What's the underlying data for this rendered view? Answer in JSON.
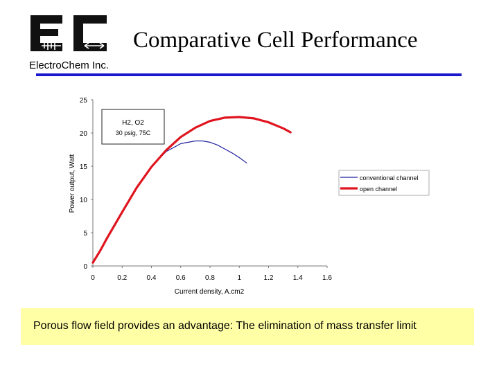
{
  "header": {
    "logo_text": "EC",
    "company": "ElectroChem Inc.",
    "title": "Comparative Cell Performance"
  },
  "chart_data": {
    "type": "line",
    "title": "",
    "xlabel": "Current density, A.cm2",
    "ylabel": "Power output, Watt",
    "xlim": [
      0,
      1.6
    ],
    "ylim": [
      0,
      25
    ],
    "xticks": [
      0,
      0.2,
      0.4,
      0.6,
      0.8,
      1,
      1.2,
      1.4,
      1.6
    ],
    "xtick_labels": [
      "0",
      "0.2",
      "0.4",
      "0.6",
      "0.8",
      "1",
      "1.2",
      "1.4",
      "1.6"
    ],
    "yticks": [
      0,
      5,
      10,
      15,
      20,
      25
    ],
    "ytick_labels": [
      "0",
      "5",
      "10",
      "15",
      "20",
      "25"
    ],
    "grid": false,
    "annotation": {
      "line1": "H2, O2",
      "line2": "30 psig, 75C"
    },
    "legend_position": "right",
    "series": [
      {
        "name": "conventional channel",
        "color": "#1f1f9e",
        "x": [
          0,
          0.05,
          0.1,
          0.2,
          0.3,
          0.4,
          0.5,
          0.6,
          0.7,
          0.75,
          0.8,
          0.85,
          0.9,
          0.95,
          1.0,
          1.05
        ],
        "y": [
          0.5,
          2.3,
          4.3,
          8.1,
          11.8,
          14.9,
          17.2,
          18.4,
          18.8,
          18.8,
          18.6,
          18.2,
          17.6,
          17.0,
          16.3,
          15.5
        ]
      },
      {
        "name": "open channel",
        "color": "#e0141e",
        "x": [
          0,
          0.05,
          0.1,
          0.2,
          0.3,
          0.4,
          0.5,
          0.6,
          0.7,
          0.8,
          0.9,
          1.0,
          1.1,
          1.2,
          1.3,
          1.35
        ],
        "y": [
          0.5,
          2.3,
          4.3,
          8.1,
          11.8,
          14.9,
          17.4,
          19.4,
          20.8,
          21.8,
          22.3,
          22.4,
          22.2,
          21.6,
          20.7,
          20.1
        ]
      }
    ]
  },
  "footer": {
    "caption": "Porous flow field provides an advantage: The elimination of mass transfer limit"
  }
}
